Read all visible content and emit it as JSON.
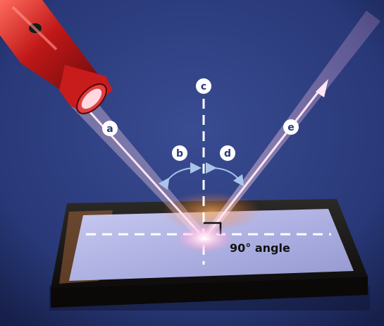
{
  "labels": {
    "a": "a",
    "b": "b",
    "c": "c",
    "d": "d",
    "e": "e"
  },
  "angle_label": "90° angle",
  "colors": {
    "background": "#2a3a78",
    "flashlight": "#c01818",
    "beam": "#ffd6e8",
    "tray_frame": "#1c1a18",
    "mirror": "#b4b8e6",
    "label_circle": "#ffffff",
    "label_text": "#2a3a78",
    "dashed_line": "#ffffff",
    "arrow": "#a9c4ea"
  }
}
